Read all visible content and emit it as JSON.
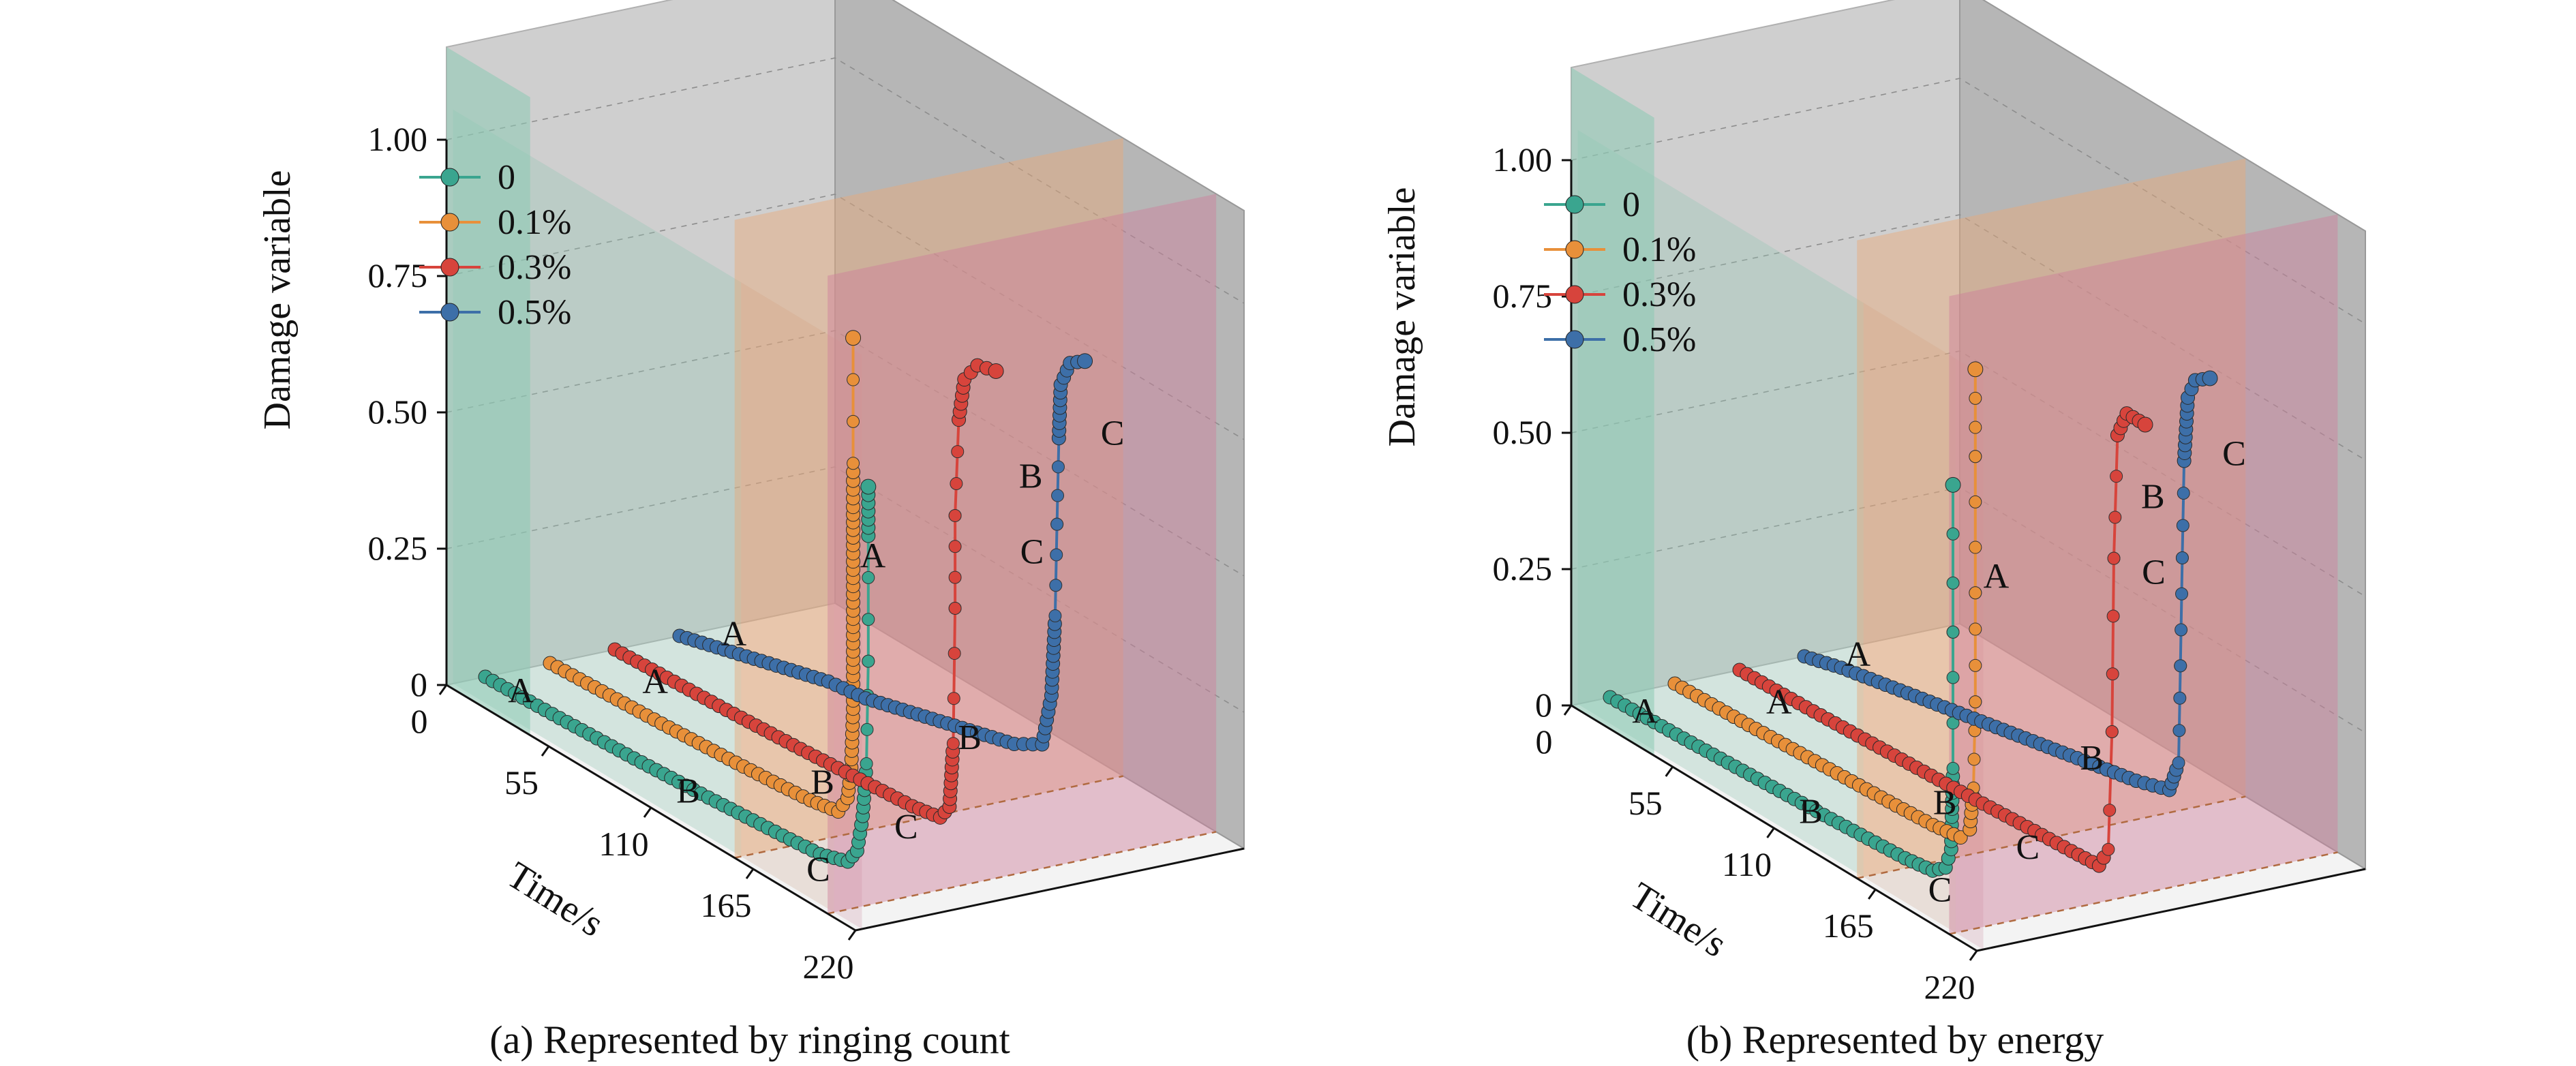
{
  "chart_data": [
    {
      "type": "line",
      "projection": "3d",
      "caption": "(a) Represented by ringing count",
      "xlabel": "Time/s",
      "ylabel": "",
      "zlabel": "Damage variable",
      "xlim": [
        0,
        220
      ],
      "zlim": [
        0,
        1
      ],
      "x_ticks": [
        "0",
        "55",
        "110",
        "165",
        "220"
      ],
      "z_ticks": [
        "0",
        "0.25",
        "0.50",
        "0.75",
        "1.00"
      ],
      "grid": true,
      "legend_position": "top-left",
      "legend": [
        "0",
        "0.1%",
        "0.3%",
        "0.5%"
      ],
      "stage_labels": [
        "A",
        "B",
        "C"
      ],
      "series": [
        {
          "name": "0",
          "color": "#3aa58f",
          "x": [
            0,
            20,
            40,
            60,
            80,
            100,
            120,
            140,
            160,
            180,
            195,
            200,
            203,
            205,
            206,
            206,
            206
          ],
          "y": [
            0.0,
            0.003,
            0.006,
            0.01,
            0.014,
            0.019,
            0.024,
            0.03,
            0.036,
            0.043,
            0.06,
            0.09,
            0.16,
            0.26,
            0.45,
            0.68,
            0.77
          ]
        },
        {
          "name": "0.1%",
          "color": "#e8903a",
          "x": [
            0,
            20,
            40,
            60,
            80,
            100,
            120,
            140,
            155,
            160,
            162,
            163,
            163,
            163,
            163,
            163,
            163
          ],
          "y": [
            0.0,
            0.004,
            0.008,
            0.012,
            0.017,
            0.022,
            0.028,
            0.035,
            0.045,
            0.08,
            0.14,
            0.25,
            0.4,
            0.55,
            0.62,
            0.7,
            0.93
          ]
        },
        {
          "name": "0.3%",
          "color": "#d7443c",
          "x": [
            0,
            20,
            40,
            60,
            80,
            100,
            120,
            140,
            160,
            175,
            180,
            182,
            183,
            183,
            185,
            188,
            195,
            205
          ],
          "y": [
            0.0,
            0.004,
            0.008,
            0.012,
            0.017,
            0.022,
            0.028,
            0.034,
            0.04,
            0.05,
            0.08,
            0.2,
            0.45,
            0.62,
            0.8,
            0.88,
            0.92,
            0.93
          ]
        },
        {
          "name": "0.5%",
          "color": "#3d6fa8",
          "x": [
            0,
            20,
            40,
            60,
            80,
            100,
            120,
            140,
            160,
            180,
            195,
            200,
            202,
            203,
            204,
            205,
            210,
            218
          ],
          "y": [
            0.0,
            0.02,
            0.04,
            0.06,
            0.08,
            0.09,
            0.11,
            0.13,
            0.15,
            0.17,
            0.2,
            0.3,
            0.45,
            0.62,
            0.78,
            0.88,
            0.93,
            0.95
          ]
        }
      ]
    },
    {
      "type": "line",
      "projection": "3d",
      "caption": "(b) Represented by energy",
      "xlabel": "Time/s",
      "ylabel": "",
      "zlabel": "Damage variable",
      "xlim": [
        0,
        220
      ],
      "zlim": [
        0,
        1
      ],
      "x_ticks": [
        "0",
        "55",
        "110",
        "165",
        "220"
      ],
      "z_ticks": [
        "0",
        "0.25",
        "0.50",
        "0.75",
        "1.00"
      ],
      "grid": true,
      "legend_position": "top-left",
      "legend": [
        "0",
        "0.1%",
        "0.3%",
        "0.5%"
      ],
      "stage_labels": [
        "A",
        "B",
        "C"
      ],
      "series": [
        {
          "name": "0",
          "color": "#3aa58f",
          "x": [
            0,
            20,
            40,
            60,
            80,
            100,
            120,
            140,
            160,
            175,
            182,
            185,
            186,
            186,
            186
          ],
          "y": [
            0.0,
            0.003,
            0.006,
            0.01,
            0.014,
            0.018,
            0.022,
            0.027,
            0.032,
            0.04,
            0.06,
            0.1,
            0.25,
            0.5,
            0.77
          ]
        },
        {
          "name": "0.1%",
          "color": "#e8903a",
          "x": [
            0,
            20,
            40,
            60,
            80,
            100,
            120,
            140,
            155,
            160,
            162,
            163,
            163,
            163,
            163
          ],
          "y": [
            0.0,
            0.003,
            0.006,
            0.01,
            0.014,
            0.018,
            0.022,
            0.027,
            0.035,
            0.06,
            0.14,
            0.3,
            0.5,
            0.75,
            0.91
          ]
        },
        {
          "name": "0.3%",
          "color": "#d7443c",
          "x": [
            0,
            20,
            40,
            60,
            80,
            100,
            120,
            140,
            160,
            180,
            195,
            200,
            202,
            203,
            205,
            210,
            220
          ],
          "y": [
            0.0,
            0.003,
            0.006,
            0.01,
            0.014,
            0.018,
            0.022,
            0.027,
            0.032,
            0.036,
            0.04,
            0.08,
            0.3,
            0.62,
            0.85,
            0.9,
            0.9
          ]
        },
        {
          "name": "0.5%",
          "color": "#3d6fa8",
          "x": [
            0,
            20,
            40,
            60,
            80,
            100,
            120,
            140,
            160,
            180,
            198,
            203,
            204,
            205,
            206,
            208,
            212,
            220
          ],
          "y": [
            0.0,
            0.02,
            0.035,
            0.05,
            0.065,
            0.08,
            0.095,
            0.11,
            0.125,
            0.14,
            0.16,
            0.22,
            0.4,
            0.6,
            0.78,
            0.9,
            0.94,
            0.96
          ]
        }
      ]
    }
  ]
}
